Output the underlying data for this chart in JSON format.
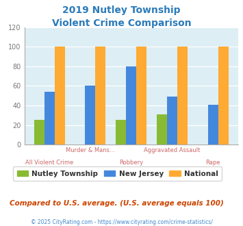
{
  "title_line1": "2019 Nutley Township",
  "title_line2": "Violent Crime Comparison",
  "title_color": "#2b7bba",
  "categories": [
    "All Violent Crime",
    "Murder & Mans...",
    "Robbery",
    "Aggravated Assault",
    "Rape"
  ],
  "nutley": [
    25,
    0,
    25,
    31,
    0
  ],
  "nj": [
    54,
    60,
    80,
    49,
    41
  ],
  "national": [
    100,
    100,
    100,
    100,
    100
  ],
  "nutley_color": "#88bb33",
  "nj_color": "#4488dd",
  "national_color": "#ffaa33",
  "bg_color": "#ddeef4",
  "ylim": [
    0,
    120
  ],
  "yticks": [
    0,
    20,
    40,
    60,
    80,
    100,
    120
  ],
  "xtick_top": [
    "",
    "Murder & Mans...",
    "",
    "Aggravated Assault",
    ""
  ],
  "xtick_bot": [
    "All Violent Crime",
    "",
    "Robbery",
    "",
    "Rape"
  ],
  "xtick_top_color": "#cc6666",
  "xtick_bot_color": "#cc6666",
  "footnote": "Compared to U.S. average. (U.S. average equals 100)",
  "footnote_color": "#cc4400",
  "copyright": "© 2025 CityRating.com - https://www.cityrating.com/crime-statistics/",
  "copyright_color": "#4488cc",
  "legend_labels": [
    "Nutley Township",
    "New Jersey",
    "National"
  ],
  "legend_text_color": "#333333",
  "bar_width": 0.25
}
